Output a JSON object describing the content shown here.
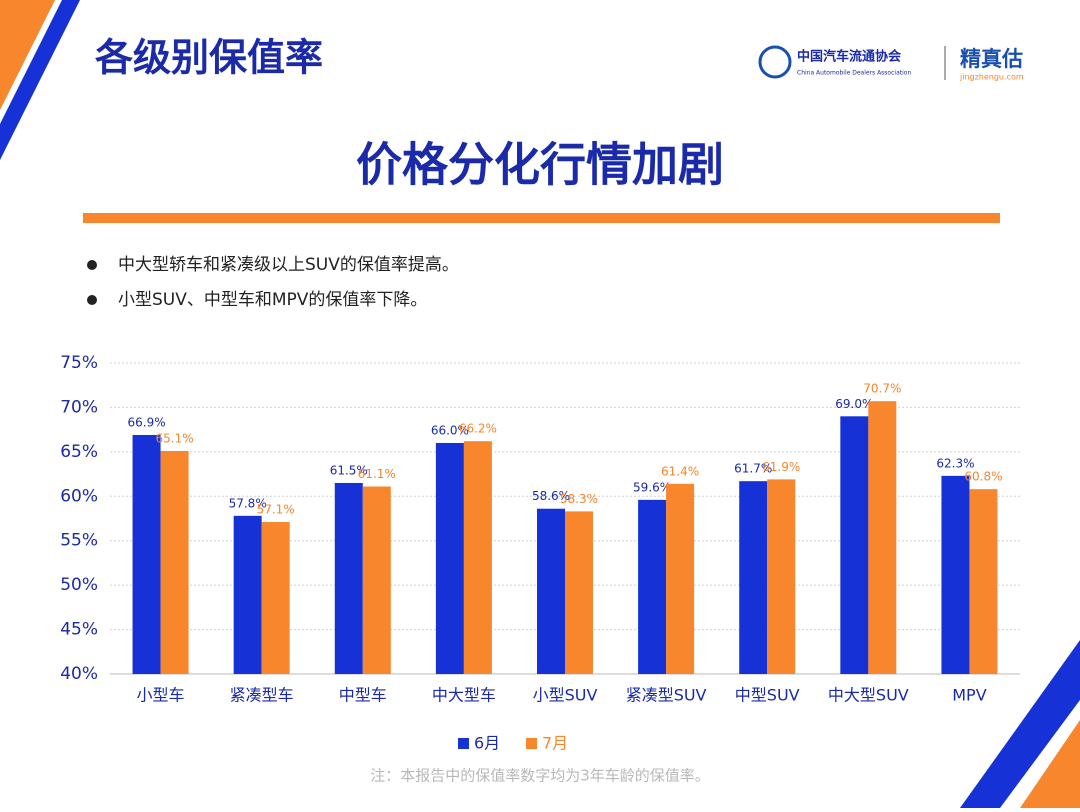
{
  "header": {
    "title": "各级别保值率",
    "logo_cn": "中国汽车流通协会",
    "logo_en": "China Automobile Dealers Association",
    "brand": "精真估",
    "brand_url": "jingzhengu.com"
  },
  "headline": "价格分化行情加剧",
  "bullets": [
    "中大型轿车和紧凑级以上SUV的保值率提高。",
    "小型SUV、中型车和MPV的保值率下降。"
  ],
  "chart_data": {
    "type": "bar",
    "categories": [
      "小型车",
      "紧凑型车",
      "中型车",
      "中大型车",
      "小型SUV",
      "紧凑型SUV",
      "中型SUV",
      "中大型SUV",
      "MPV"
    ],
    "series": [
      {
        "name": "6月",
        "color": "#1631d6",
        "values": [
          66.9,
          57.8,
          61.5,
          66.0,
          58.6,
          59.6,
          61.7,
          69.0,
          62.3
        ],
        "value_labels": [
          "66.9%",
          "57.8%",
          "61.5%",
          "66.0%",
          "58.6%",
          "59.6%",
          "61.7%",
          "69.0%",
          "62.3%"
        ]
      },
      {
        "name": "7月",
        "color": "#f7862c",
        "values": [
          65.1,
          57.1,
          61.1,
          66.2,
          58.3,
          61.4,
          61.9,
          70.7,
          60.8
        ],
        "value_labels": [
          "65.1%",
          "57.1%",
          "61.1%",
          "66.2%",
          "58.3%",
          "61.4%",
          "61.9%",
          "70.7%",
          "60.8%"
        ]
      }
    ],
    "ylim": [
      40,
      75
    ],
    "yticks": [
      {
        "value": 40,
        "label": "40%"
      },
      {
        "value": 45,
        "label": "45%"
      },
      {
        "value": 50,
        "label": "50%"
      },
      {
        "value": 55,
        "label": "55%"
      },
      {
        "value": 60,
        "label": "60%"
      },
      {
        "value": 65,
        "label": "65%"
      },
      {
        "value": 70,
        "label": "70%"
      },
      {
        "value": 75,
        "label": "75%"
      }
    ],
    "grid": true,
    "legend": "bottom"
  },
  "note": "注：本报告中的保值率数字均为3年车龄的保值率。"
}
